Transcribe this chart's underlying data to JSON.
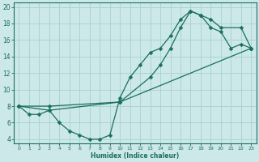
{
  "background_color": "#cce8e8",
  "grid_color": "#aad4d4",
  "line_color": "#1a6e60",
  "xlabel": "Humidex (Indice chaleur)",
  "xlim": [
    -0.5,
    23.5
  ],
  "ylim": [
    3.5,
    20.5
  ],
  "xticks": [
    0,
    1,
    2,
    3,
    4,
    5,
    6,
    7,
    8,
    9,
    10,
    11,
    12,
    13,
    14,
    15,
    16,
    17,
    18,
    19,
    20,
    21,
    22,
    23
  ],
  "yticks": [
    4,
    6,
    8,
    10,
    12,
    14,
    16,
    18,
    20
  ],
  "curve1_x": [
    0,
    1,
    2,
    3,
    4,
    5,
    6,
    7,
    8,
    9,
    10,
    11,
    12,
    13,
    14,
    15,
    16,
    17,
    18,
    19,
    20,
    21,
    22,
    23
  ],
  "curve1_y": [
    8,
    7,
    7,
    7.5,
    6,
    5,
    4.5,
    4,
    4,
    4.5,
    9,
    11.5,
    13,
    14.5,
    15,
    16.5,
    18.5,
    19.5,
    19,
    17.5,
    17,
    15,
    15.5,
    15
  ],
  "curve2_x": [
    0,
    3,
    10,
    13,
    14,
    15,
    16,
    17,
    18,
    19,
    20,
    22,
    23
  ],
  "curve2_y": [
    8,
    7.5,
    8.5,
    11.5,
    13,
    15,
    17.5,
    19.5,
    19,
    18.5,
    17.5,
    17.5,
    15
  ],
  "curve3_x": [
    0,
    3,
    10,
    23
  ],
  "curve3_y": [
    8,
    8,
    8.5,
    15
  ]
}
